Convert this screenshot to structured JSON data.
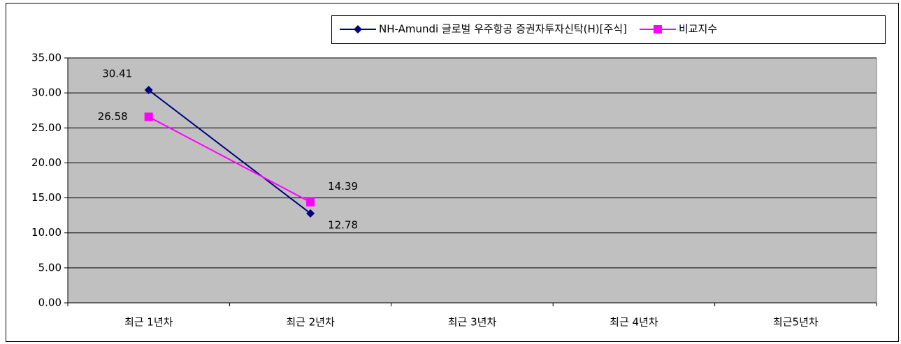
{
  "chart_data": {
    "type": "line",
    "categories": [
      "최근 1년차",
      "최근 2년차",
      "최근 3년차",
      "최근 4년차",
      "최근5년차"
    ],
    "series": [
      {
        "name": "NH-Amundi 글로벌 우주항공 증권자투자신탁(H)[주식]",
        "color": "#000080",
        "marker": "diamond",
        "values": [
          30.41,
          12.78,
          null,
          null,
          null
        ]
      },
      {
        "name": "비교지수",
        "color": "#ff00ff",
        "marker": "square",
        "values": [
          26.58,
          14.39,
          null,
          null,
          null
        ]
      }
    ],
    "ylim": [
      0,
      35
    ],
    "yticks": [
      {
        "value": 0,
        "label": "0.00"
      },
      {
        "value": 5,
        "label": "5.00"
      },
      {
        "value": 10,
        "label": "10.00"
      },
      {
        "value": 15,
        "label": "15.00"
      },
      {
        "value": 20,
        "label": "20.00"
      },
      {
        "value": 25,
        "label": "25.00"
      },
      {
        "value": 30,
        "label": "30.00"
      },
      {
        "value": 35,
        "label": "35.00"
      }
    ],
    "grid": true,
    "legend": "top-right",
    "plot_background": "#c0c0c0"
  }
}
